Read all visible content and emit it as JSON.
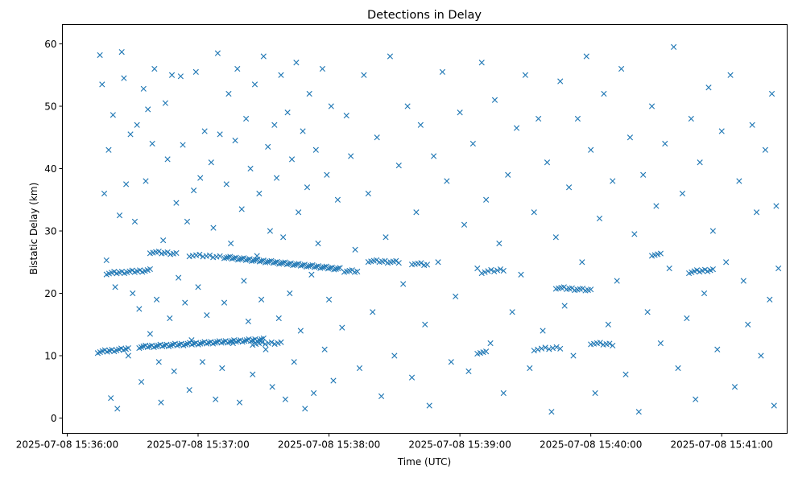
{
  "chart_data": {
    "type": "scatter",
    "title": "Detections in Delay",
    "xlabel": "Time (UTC)",
    "ylabel": "Bistatic Delay (km)",
    "x_unit": "seconds after 2025-07-08 15:36:00",
    "xlim": [
      -2.2,
      330
    ],
    "ylim": [
      -2.45,
      63.1
    ],
    "grid": false,
    "marker": "x",
    "color": "#1f77b4",
    "x_ticks": [
      {
        "value": 0,
        "label": "2025-07-08 15:36:00"
      },
      {
        "value": 60,
        "label": "2025-07-08 15:37:00"
      },
      {
        "value": 120,
        "label": "2025-07-08 15:38:00"
      },
      {
        "value": 180,
        "label": "2025-07-08 15:39:00"
      },
      {
        "value": 240,
        "label": "2025-07-08 15:40:00"
      },
      {
        "value": 300,
        "label": "2025-07-08 15:41:00"
      }
    ],
    "y_ticks": [
      {
        "value": 0,
        "label": "0"
      },
      {
        "value": 10,
        "label": "10"
      },
      {
        "value": 20,
        "label": "20"
      },
      {
        "value": 30,
        "label": "30"
      },
      {
        "value": 40,
        "label": "40"
      },
      {
        "value": 50,
        "label": "50"
      },
      {
        "value": 60,
        "label": "60"
      }
    ],
    "tracks": [
      {
        "t0": 14,
        "t1": 28,
        "y0": 10.6,
        "y1": 11.1,
        "n": 14
      },
      {
        "t0": 33,
        "t1": 90,
        "y0": 11.4,
        "y1": 12.6,
        "n": 60
      },
      {
        "t0": 85,
        "t1": 98,
        "y0": 11.9,
        "y1": 12.1,
        "n": 10
      },
      {
        "t0": 18,
        "t1": 38,
        "y0": 23.2,
        "y1": 23.7,
        "n": 18
      },
      {
        "t0": 38,
        "t1": 50,
        "y0": 26.6,
        "y1": 26.4,
        "n": 10
      },
      {
        "t0": 56,
        "t1": 70,
        "y0": 26.1,
        "y1": 25.9,
        "n": 10
      },
      {
        "t0": 72,
        "t1": 125,
        "y0": 25.8,
        "y1": 23.9,
        "n": 60
      },
      {
        "t0": 127,
        "t1": 133,
        "y0": 23.6,
        "y1": 23.5,
        "n": 6
      },
      {
        "t0": 138,
        "t1": 152,
        "y0": 25.2,
        "y1": 25.0,
        "n": 12
      },
      {
        "t0": 158,
        "t1": 165,
        "y0": 24.8,
        "y1": 24.6,
        "n": 6
      },
      {
        "t0": 190,
        "t1": 200,
        "y0": 23.4,
        "y1": 23.8,
        "n": 8
      },
      {
        "t0": 188,
        "t1": 192,
        "y0": 10.5,
        "y1": 10.5,
        "n": 4
      },
      {
        "t0": 214,
        "t1": 226,
        "y0": 11.0,
        "y1": 11.3,
        "n": 8
      },
      {
        "t0": 224,
        "t1": 240,
        "y0": 20.9,
        "y1": 20.5,
        "n": 14
      },
      {
        "t0": 240,
        "t1": 250,
        "y0": 12.0,
        "y1": 11.8,
        "n": 8
      },
      {
        "t0": 268,
        "t1": 272,
        "y0": 26.2,
        "y1": 26.2,
        "n": 4
      },
      {
        "t0": 285,
        "t1": 296,
        "y0": 23.4,
        "y1": 23.8,
        "n": 10
      }
    ],
    "points": [
      [
        15,
        58.2
      ],
      [
        16,
        53.5
      ],
      [
        17,
        36
      ],
      [
        18,
        25.3
      ],
      [
        19,
        43
      ],
      [
        20,
        3.2
      ],
      [
        21,
        48.6
      ],
      [
        22,
        21
      ],
      [
        23,
        1.5
      ],
      [
        24,
        32.5
      ],
      [
        25,
        58.7
      ],
      [
        26,
        54.5
      ],
      [
        27,
        37.5
      ],
      [
        28,
        10
      ],
      [
        29,
        45.5
      ],
      [
        30,
        20
      ],
      [
        31,
        31.5
      ],
      [
        32,
        47
      ],
      [
        33,
        17.5
      ],
      [
        34,
        5.8
      ],
      [
        35,
        52.8
      ],
      [
        36,
        38
      ],
      [
        37,
        49.5
      ],
      [
        38,
        13.5
      ],
      [
        39,
        44
      ],
      [
        40,
        56
      ],
      [
        41,
        19
      ],
      [
        42,
        9
      ],
      [
        43,
        2.5
      ],
      [
        44,
        28.5
      ],
      [
        45,
        50.5
      ],
      [
        46,
        41.5
      ],
      [
        47,
        16
      ],
      [
        48,
        55
      ],
      [
        49,
        7.5
      ],
      [
        50,
        34.5
      ],
      [
        51,
        22.5
      ],
      [
        52,
        54.8
      ],
      [
        53,
        43.8
      ],
      [
        54,
        18.5
      ],
      [
        55,
        31.5
      ],
      [
        56,
        4.5
      ],
      [
        57,
        12.5
      ],
      [
        58,
        36.5
      ],
      [
        59,
        55.5
      ],
      [
        60,
        21
      ],
      [
        61,
        38.5
      ],
      [
        62,
        9
      ],
      [
        63,
        46
      ],
      [
        64,
        16.5
      ],
      [
        66,
        41
      ],
      [
        67,
        30.5
      ],
      [
        68,
        3
      ],
      [
        69,
        58.5
      ],
      [
        70,
        45.5
      ],
      [
        71,
        8
      ],
      [
        72,
        18.5
      ],
      [
        73,
        37.5
      ],
      [
        74,
        52
      ],
      [
        75,
        28
      ],
      [
        76,
        12
      ],
      [
        77,
        44.5
      ],
      [
        78,
        56
      ],
      [
        79,
        2.5
      ],
      [
        80,
        33.5
      ],
      [
        81,
        22
      ],
      [
        82,
        48
      ],
      [
        83,
        15.5
      ],
      [
        84,
        40
      ],
      [
        85,
        7
      ],
      [
        86,
        53.5
      ],
      [
        87,
        26
      ],
      [
        88,
        36
      ],
      [
        89,
        19
      ],
      [
        90,
        58
      ],
      [
        91,
        11
      ],
      [
        92,
        43.5
      ],
      [
        93,
        30
      ],
      [
        94,
        5
      ],
      [
        95,
        47
      ],
      [
        96,
        38.5
      ],
      [
        97,
        16
      ],
      [
        98,
        55
      ],
      [
        99,
        29
      ],
      [
        100,
        3
      ],
      [
        101,
        49
      ],
      [
        102,
        20
      ],
      [
        103,
        41.5
      ],
      [
        104,
        9
      ],
      [
        105,
        57
      ],
      [
        106,
        33
      ],
      [
        107,
        14
      ],
      [
        108,
        46
      ],
      [
        109,
        1.5
      ],
      [
        110,
        37
      ],
      [
        111,
        52
      ],
      [
        112,
        23
      ],
      [
        113,
        4
      ],
      [
        114,
        43
      ],
      [
        115,
        28
      ],
      [
        117,
        56
      ],
      [
        118,
        11
      ],
      [
        119,
        39
      ],
      [
        120,
        19
      ],
      [
        121,
        50
      ],
      [
        122,
        6
      ],
      [
        124,
        35
      ],
      [
        126,
        14.5
      ],
      [
        128,
        48.5
      ],
      [
        130,
        42
      ],
      [
        132,
        27
      ],
      [
        134,
        8
      ],
      [
        136,
        55
      ],
      [
        138,
        36
      ],
      [
        140,
        17
      ],
      [
        142,
        45
      ],
      [
        144,
        3.5
      ],
      [
        146,
        29
      ],
      [
        148,
        58
      ],
      [
        150,
        10
      ],
      [
        152,
        40.5
      ],
      [
        154,
        21.5
      ],
      [
        156,
        50
      ],
      [
        158,
        6.5
      ],
      [
        160,
        33
      ],
      [
        162,
        47
      ],
      [
        164,
        15
      ],
      [
        166,
        2
      ],
      [
        168,
        42
      ],
      [
        170,
        25
      ],
      [
        172,
        55.5
      ],
      [
        174,
        38
      ],
      [
        176,
        9
      ],
      [
        178,
        19.5
      ],
      [
        180,
        49
      ],
      [
        182,
        31
      ],
      [
        184,
        7.5
      ],
      [
        186,
        44
      ],
      [
        188,
        24
      ],
      [
        190,
        57
      ],
      [
        192,
        35
      ],
      [
        194,
        12
      ],
      [
        196,
        51
      ],
      [
        198,
        28
      ],
      [
        200,
        4
      ],
      [
        202,
        39
      ],
      [
        204,
        17
      ],
      [
        206,
        46.5
      ],
      [
        208,
        23
      ],
      [
        210,
        55
      ],
      [
        212,
        8
      ],
      [
        214,
        33
      ],
      [
        216,
        48
      ],
      [
        218,
        14
      ],
      [
        220,
        41
      ],
      [
        222,
        1
      ],
      [
        224,
        29
      ],
      [
        226,
        54
      ],
      [
        228,
        18
      ],
      [
        230,
        37
      ],
      [
        232,
        10
      ],
      [
        234,
        48
      ],
      [
        236,
        25
      ],
      [
        238,
        58
      ],
      [
        240,
        43
      ],
      [
        242,
        4
      ],
      [
        244,
        32
      ],
      [
        246,
        52
      ],
      [
        248,
        15
      ],
      [
        250,
        38
      ],
      [
        252,
        22
      ],
      [
        254,
        56
      ],
      [
        256,
        7
      ],
      [
        258,
        45
      ],
      [
        260,
        29.5
      ],
      [
        262,
        1
      ],
      [
        264,
        39
      ],
      [
        266,
        17
      ],
      [
        268,
        50
      ],
      [
        270,
        34
      ],
      [
        272,
        12
      ],
      [
        274,
        44
      ],
      [
        276,
        24
      ],
      [
        278,
        59.5
      ],
      [
        280,
        8
      ],
      [
        282,
        36
      ],
      [
        284,
        16
      ],
      [
        286,
        48
      ],
      [
        288,
        3
      ],
      [
        290,
        41
      ],
      [
        292,
        20
      ],
      [
        294,
        53
      ],
      [
        296,
        30
      ],
      [
        298,
        11
      ],
      [
        300,
        46
      ],
      [
        302,
        25
      ],
      [
        304,
        55
      ],
      [
        306,
        5
      ],
      [
        308,
        38
      ],
      [
        310,
        22
      ],
      [
        312,
        15
      ],
      [
        314,
        47
      ],
      [
        316,
        33
      ],
      [
        318,
        10
      ],
      [
        320,
        43
      ],
      [
        322,
        19
      ],
      [
        323,
        52
      ],
      [
        324,
        2
      ],
      [
        325,
        34
      ],
      [
        326,
        24
      ]
    ]
  }
}
